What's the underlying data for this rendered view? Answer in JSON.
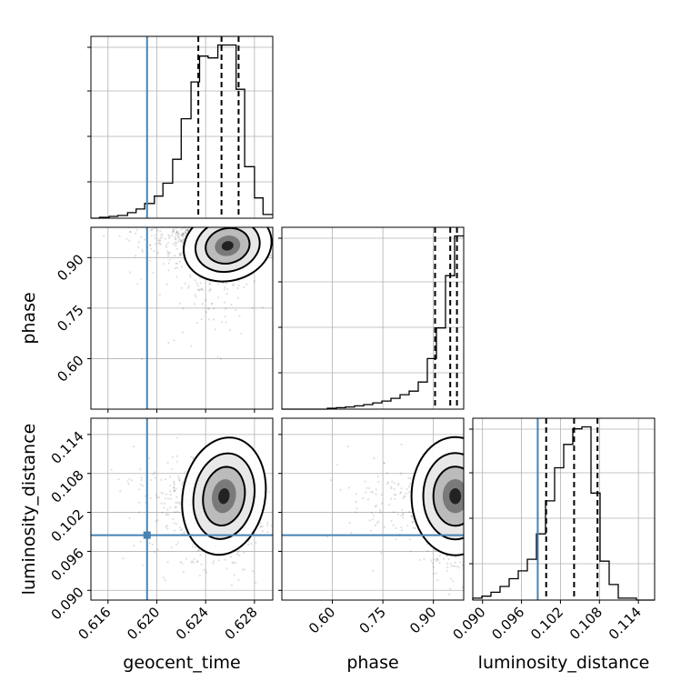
{
  "chart_data": {
    "type": "corner",
    "parameters": [
      "geocent_time",
      "phase",
      "luminosity_distance"
    ],
    "xlabels": [
      "geocent_time",
      "phase",
      "luminosity_distance"
    ],
    "ylabels": [
      "",
      "phase",
      "luminosity_distance"
    ],
    "truths": {
      "geocent_time": 0.6192,
      "phase": null,
      "luminosity_distance": 0.0985
    },
    "truth_color": "#4682b4",
    "ranges": {
      "geocent_time": [
        0.6146,
        0.6295
      ],
      "phase": [
        0.45,
        0.99
      ],
      "luminosity_distance": [
        0.0885,
        0.1165
      ]
    },
    "ticks": {
      "geocent_time": {
        "values": [
          0.616,
          0.62,
          0.624,
          0.628
        ],
        "labels": [
          "0.616",
          "0.620",
          "0.624",
          "0.628"
        ]
      },
      "phase": {
        "values": [
          0.6,
          0.75,
          0.9
        ],
        "labels": [
          "0.60",
          "0.75",
          "0.90"
        ]
      },
      "luminosity_distance": {
        "values": [
          0.09,
          0.096,
          0.102,
          0.108,
          0.114
        ],
        "labels": [
          "0.090",
          "0.096",
          "0.102",
          "0.108",
          "0.114"
        ]
      }
    },
    "histograms": {
      "geocent_time": {
        "edges": [
          0.6146,
          0.6153,
          0.6161,
          0.6168,
          0.6176,
          0.6183,
          0.619,
          0.6198,
          0.6205,
          0.6213,
          0.622,
          0.6228,
          0.6235,
          0.6242,
          0.625,
          0.6257,
          0.6265,
          0.6272,
          0.628,
          0.6287,
          0.6295
        ],
        "counts": [
          0,
          0.005,
          0.01,
          0.015,
          0.03,
          0.05,
          0.08,
          0.12,
          0.19,
          0.32,
          0.54,
          0.74,
          0.88,
          0.87,
          0.94,
          0.94,
          0.7,
          0.28,
          0.11,
          0.02
        ],
        "quantiles": [
          0.6234,
          0.6253,
          0.6267
        ]
      },
      "phase": {
        "edges": [
          0.45,
          0.477,
          0.504,
          0.531,
          0.558,
          0.585,
          0.612,
          0.639,
          0.666,
          0.693,
          0.72,
          0.747,
          0.774,
          0.801,
          0.828,
          0.855,
          0.882,
          0.909,
          0.936,
          0.963,
          0.99
        ],
        "counts": [
          0,
          0,
          0,
          0,
          0,
          0.005,
          0.008,
          0.012,
          0.018,
          0.025,
          0.035,
          0.045,
          0.06,
          0.08,
          0.1,
          0.15,
          0.28,
          0.45,
          0.74,
          0.96
        ],
        "quantiles": [
          0.905,
          0.95,
          0.97
        ]
      },
      "luminosity_distance": {
        "edges": [
          0.0885,
          0.0899,
          0.0913,
          0.0927,
          0.0941,
          0.0955,
          0.0969,
          0.0983,
          0.0997,
          0.1011,
          0.1025,
          0.1039,
          0.1053,
          0.1067,
          0.1081,
          0.1095,
          0.1109,
          0.1123,
          0.1137,
          0.1151,
          0.1165
        ],
        "counts": [
          0.01,
          0.02,
          0.04,
          0.07,
          0.11,
          0.15,
          0.21,
          0.34,
          0.51,
          0.68,
          0.8,
          0.88,
          0.89,
          0.55,
          0.2,
          0.08,
          0.01,
          0.01,
          0,
          0
        ],
        "quantiles": [
          0.0998,
          0.1041,
          0.1077
        ]
      }
    },
    "scatter_samples_per_panel": 900,
    "grid": true
  }
}
